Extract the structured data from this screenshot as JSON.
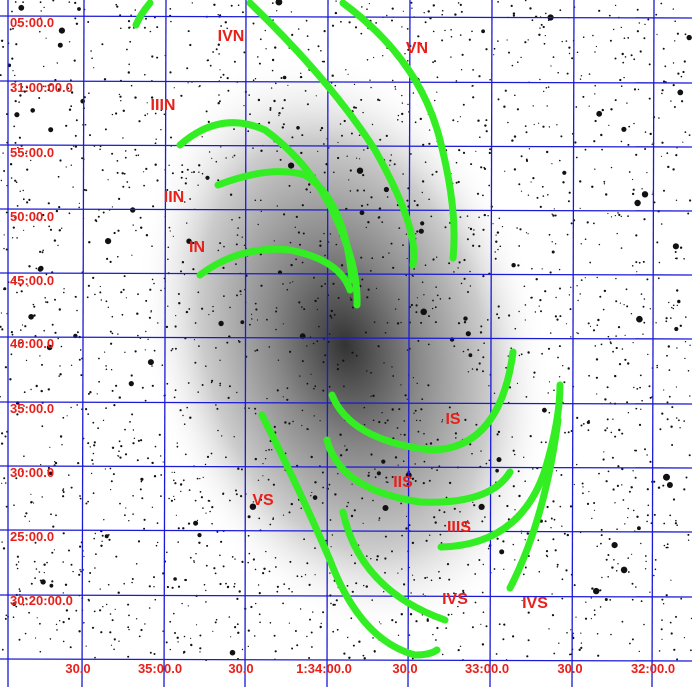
{
  "y_labels": [
    "05:00.0",
    "31:00:00.0",
    "55:00.0",
    "50:00.0",
    "45:00.0",
    "40:00.0",
    "35:00.0",
    "30:00.0",
    "25:00.0",
    "30:20:00.0"
  ],
  "x_labels": [
    "30.0",
    "35:00.0",
    "30.0",
    "1:34:00.0",
    "30.0",
    "33:00.0",
    "30.0",
    "32:00.0"
  ],
  "arm_labels": [
    "IVN",
    "VN",
    "IIIN",
    "IIN",
    "IN",
    "IS",
    "IIS",
    "IIIS",
    "IVS",
    "IVS",
    "VS"
  ]
}
